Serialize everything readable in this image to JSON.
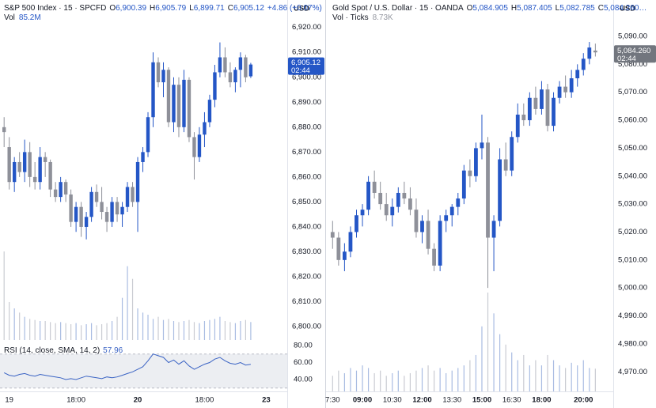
{
  "chart_data": [
    {
      "type": "candlestick",
      "title": "S&P 500 Index · 15 · SPCFD",
      "ohlc": [
        [
          "O",
          "6,900.39"
        ],
        [
          "H",
          "6,905.79"
        ],
        [
          "L",
          "6,899.71"
        ],
        [
          "C",
          "6,905.12"
        ]
      ],
      "change": "+4.86 (+0.07%)",
      "currency": "USD",
      "up_color": "#2456c6",
      "down_color": "#8e9099",
      "open": [
        6880,
        6872,
        6858,
        6866,
        6862,
        6870,
        6860,
        6858,
        6868,
        6866,
        6855,
        6852,
        6858,
        6853,
        6842,
        6848,
        6840,
        6844,
        6854,
        6850,
        6846,
        6842,
        6850,
        6845,
        6848,
        6856,
        6850,
        6866,
        6870,
        6884,
        6906,
        6898,
        6903,
        6882,
        6897,
        6880,
        6899,
        6876,
        6868,
        6877,
        6882,
        6891,
        6902,
        6908,
        6902,
        6898,
        6903,
        6908,
        6900.39
      ],
      "high": [
        6884,
        6876,
        6868,
        6870,
        6875,
        6874,
        6866,
        6872,
        6870,
        6867,
        6858,
        6860,
        6859,
        6855,
        6850,
        6850,
        6846,
        6856,
        6857,
        6856,
        6848,
        6852,
        6852,
        6850,
        6858,
        6858,
        6868,
        6872,
        6886,
        6910,
        6908,
        6906,
        6904,
        6900,
        6900,
        6903,
        6900,
        6878,
        6880,
        6886,
        6893,
        6905,
        6914,
        6912,
        6906,
        6904,
        6910,
        6909,
        6905.79
      ],
      "low": [
        6872,
        6855,
        6854,
        6860,
        6858,
        6856,
        6855,
        6855,
        6860,
        6852,
        6850,
        6850,
        6850,
        6840,
        6838,
        6836,
        6835,
        6842,
        6848,
        6843,
        6838,
        6840,
        6842,
        6840,
        6846,
        6848,
        6838,
        6862,
        6868,
        6880,
        6896,
        6892,
        6880,
        6878,
        6876,
        6878,
        6874,
        6859,
        6866,
        6872,
        6880,
        6888,
        6900,
        6900,
        6896,
        6894,
        6896,
        6898,
        6899.71
      ],
      "close": [
        6878,
        6858,
        6866,
        6862,
        6870,
        6860,
        6858,
        6868,
        6866,
        6855,
        6852,
        6858,
        6853,
        6842,
        6848,
        6840,
        6844,
        6854,
        6850,
        6846,
        6842,
        6850,
        6845,
        6848,
        6856,
        6850,
        6866,
        6870,
        6884,
        6906,
        6898,
        6903,
        6882,
        6897,
        6880,
        6899,
        6876,
        6868,
        6877,
        6882,
        6891,
        6902,
        6908,
        6902,
        6898,
        6903,
        6908,
        6900,
        6905.12
      ],
      "last_price": {
        "label": "6,905.12",
        "countdown": "02:44",
        "color": "#2456c6"
      },
      "volume": {
        "name": "Vol",
        "value_label": "85.2M",
        "up_color": "#a9bce2",
        "down_color": "#c9cbd2",
        "values": [
          420,
          180,
          150,
          130,
          110,
          100,
          95,
          90,
          90,
          85,
          80,
          85,
          80,
          75,
          80,
          70,
          75,
          80,
          70,
          75,
          80,
          90,
          110,
          200,
          350,
          290,
          150,
          130,
          120,
          100,
          110,
          95,
          100,
          90,
          85,
          90,
          95,
          85,
          80,
          90,
          95,
          100,
          110,
          90,
          85,
          80,
          90,
          95,
          85.2
        ]
      },
      "rsi": {
        "name": "RSI (14, close, SMA, 14, 2)",
        "color": "#3a63c4",
        "band": [
          30,
          70
        ],
        "values": [
          48,
          45,
          44,
          46,
          47,
          45,
          44,
          46,
          45,
          44,
          43,
          42,
          40,
          41,
          40,
          42,
          44,
          43,
          42,
          41,
          43,
          42,
          43,
          45,
          47,
          49,
          52,
          55,
          62,
          70,
          68,
          66,
          60,
          63,
          58,
          62,
          56,
          52,
          55,
          58,
          60,
          64,
          66,
          62,
          59,
          58,
          60,
          57,
          57.96
        ],
        "ylim": [
          28.8,
          86.5
        ],
        "yticks": [
          {
            "value": 80,
            "label": "80.00"
          },
          {
            "value": 60,
            "label": "60.00"
          },
          {
            "value": 40,
            "label": "40.00"
          }
        ]
      },
      "grid": false,
      "xlim": [
        -0.8,
        55.1
      ],
      "xticks": [
        {
          "value": 1,
          "label": "19"
        },
        {
          "value": 14,
          "label": "18:00"
        },
        {
          "value": 26,
          "label": "20",
          "bold": true
        },
        {
          "value": 39,
          "label": "18:00"
        },
        {
          "value": 51,
          "label": "23",
          "bold": true
        }
      ],
      "ylim": [
        6794,
        6931
      ],
      "yticks": [
        {
          "value": 6920,
          "label": "6,920.00"
        },
        {
          "value": 6910,
          "label": "6,910.00"
        },
        {
          "value": 6900,
          "label": "6,900.00"
        },
        {
          "value": 6890,
          "label": "6,890.00"
        },
        {
          "value": 6880,
          "label": "6,880.00"
        },
        {
          "value": 6870,
          "label": "6,870.00"
        },
        {
          "value": 6860,
          "label": "6,860.00"
        },
        {
          "value": 6850,
          "label": "6,850.00"
        },
        {
          "value": 6840,
          "label": "6,840.00"
        },
        {
          "value": 6830,
          "label": "6,830.00"
        },
        {
          "value": 6820,
          "label": "6,820.00"
        },
        {
          "value": 6810,
          "label": "6,810.00"
        },
        {
          "value": 6800,
          "label": "6,800.00"
        }
      ]
    },
    {
      "type": "candlestick",
      "title": "Gold Spot / U.S. Dollar · 15 · OANDA",
      "ohlc": [
        [
          "O",
          "5,084.905"
        ],
        [
          "H",
          "5,087.405"
        ],
        [
          "L",
          "5,082.785"
        ],
        [
          "C",
          "5,084.260…"
        ]
      ],
      "currency": "USD",
      "up_color": "#2456c6",
      "down_color": "#8e9099",
      "open": [
        5020,
        5018,
        5010,
        5013,
        5020,
        5026,
        5028,
        5038,
        5034,
        5030,
        5026,
        5029,
        5034,
        5032,
        5028,
        5020,
        5024,
        5014,
        5008,
        5024,
        5026,
        5029,
        5032,
        5042,
        5040,
        5050,
        5052,
        5018,
        5024,
        5046,
        5042,
        5054,
        5062,
        5060,
        5068,
        5064,
        5071,
        5058,
        5068,
        5072,
        5070,
        5075,
        5078,
        5082,
        5084.905
      ],
      "high": [
        5024,
        5020,
        5016,
        5022,
        5028,
        5030,
        5040,
        5042,
        5038,
        5034,
        5032,
        5036,
        5038,
        5036,
        5032,
        5026,
        5028,
        5016,
        5026,
        5028,
        5030,
        5034,
        5044,
        5046,
        5052,
        5062,
        5054,
        5026,
        5050,
        5052,
        5056,
        5066,
        5066,
        5070,
        5072,
        5074,
        5073,
        5070,
        5074,
        5076,
        5078,
        5080,
        5084,
        5088,
        5087.405
      ],
      "low": [
        5014,
        5008,
        5006,
        5011,
        5018,
        5022,
        5026,
        5032,
        5028,
        5024,
        5022,
        5027,
        5030,
        5026,
        5018,
        5016,
        5012,
        5006,
        5006,
        5020,
        5022,
        5026,
        5030,
        5036,
        5038,
        5046,
        5000,
        5006,
        5022,
        5040,
        5040,
        5052,
        5058,
        5058,
        5062,
        5062,
        5056,
        5056,
        5066,
        5068,
        5068,
        5072,
        5076,
        5080,
        5082.785
      ],
      "close": [
        5018,
        5010,
        5013,
        5020,
        5026,
        5028,
        5038,
        5034,
        5030,
        5026,
        5029,
        5034,
        5032,
        5028,
        5020,
        5024,
        5014,
        5008,
        5024,
        5026,
        5029,
        5032,
        5042,
        5040,
        5050,
        5052,
        5018,
        5024,
        5046,
        5042,
        5054,
        5062,
        5060,
        5068,
        5064,
        5071,
        5058,
        5068,
        5072,
        5070,
        5075,
        5078,
        5082,
        5086,
        5084.26
      ],
      "last_price": {
        "label": "5,084.260",
        "countdown": "02:44",
        "color": "#72767e"
      },
      "volume": {
        "name": "Vol · Ticks",
        "value_label": "8.73K",
        "up_color": "#a9bce2",
        "down_color": "#c9cbd2",
        "values": [
          6,
          8,
          7,
          9,
          8,
          10,
          9,
          7,
          8,
          6,
          7,
          8,
          6,
          7,
          8,
          9,
          10,
          8,
          9,
          7,
          8,
          9,
          10,
          12,
          14,
          25,
          38,
          30,
          22,
          18,
          15,
          12,
          14,
          10,
          12,
          10,
          14,
          12,
          10,
          9,
          11,
          10,
          12,
          9,
          8.73
        ]
      },
      "grid": false,
      "xlim": [
        -1.1,
        47
      ],
      "xticks": [
        {
          "value": 0,
          "label": "7:30"
        },
        {
          "value": 5,
          "label": "09:00",
          "bold": true
        },
        {
          "value": 10,
          "label": "10:30"
        },
        {
          "value": 15,
          "label": "12:00",
          "bold": true
        },
        {
          "value": 20,
          "label": "13:30"
        },
        {
          "value": 25,
          "label": "15:00",
          "bold": true
        },
        {
          "value": 30,
          "label": "16:30"
        },
        {
          "value": 35,
          "label": "18:00",
          "bold": true
        },
        {
          "value": 42,
          "label": "20:00",
          "bold": true
        }
      ],
      "ylim": [
        4963,
        5103
      ],
      "yticks": [
        {
          "value": 5090,
          "label": "5,090.00"
        },
        {
          "value": 5080,
          "label": "5,080.00"
        },
        {
          "value": 5070,
          "label": "5,070.00"
        },
        {
          "value": 5060,
          "label": "5,060.00"
        },
        {
          "value": 5050,
          "label": "5,050.00"
        },
        {
          "value": 5040,
          "label": "5,040.00"
        },
        {
          "value": 5030,
          "label": "5,030.00"
        },
        {
          "value": 5020,
          "label": "5,020.00"
        },
        {
          "value": 5010,
          "label": "5,010.00"
        },
        {
          "value": 5000,
          "label": "5,000.00"
        },
        {
          "value": 4990,
          "label": "4,990.00"
        },
        {
          "value": 4980,
          "label": "4,980.00"
        },
        {
          "value": 4970,
          "label": "4,970.00"
        }
      ]
    }
  ]
}
